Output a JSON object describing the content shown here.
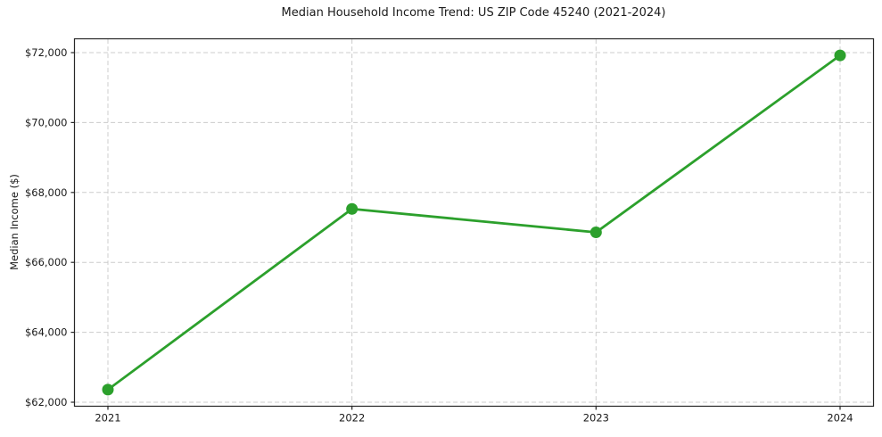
{
  "title": "Median Household Income Trend: US ZIP Code 45240 (2021-2024)",
  "chart_data": {
    "type": "line",
    "title": "Median Household Income Trend: US ZIP Code 45240 (2021-2024)",
    "xlabel": "",
    "ylabel": "Median Income ($)",
    "categories": [
      "2021",
      "2022",
      "2023",
      "2024"
    ],
    "values": [
      62360,
      67530,
      66860,
      71920
    ],
    "ylim": [
      62000,
      72000
    ],
    "ytick_step": 2000,
    "ytick_labels": [
      "$62,000",
      "$64,000",
      "$66,000",
      "$68,000",
      "$70,000",
      "$72,000"
    ],
    "grid": true,
    "legend_position": "none",
    "line_color": "#2ca02c",
    "marker_color": "#2ca02c",
    "grid_color": "#cccccc",
    "spine_color": "#262626",
    "background_color": "#ffffff"
  }
}
